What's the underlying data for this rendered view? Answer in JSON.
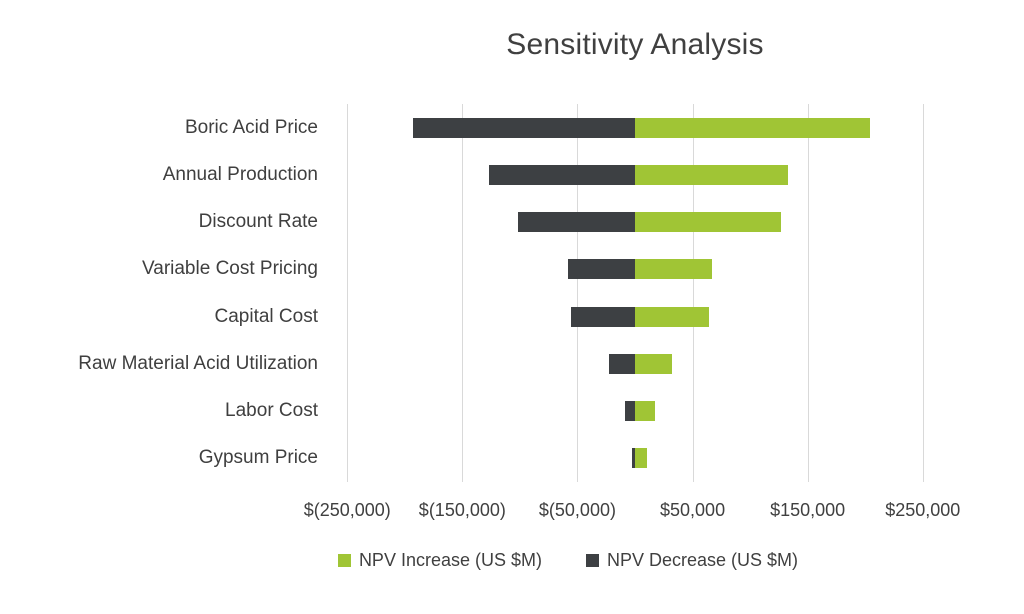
{
  "title": "Sensitivity Analysis",
  "legend": [
    {
      "label": "NPV Increase (US $M)",
      "color": "#a0c535",
      "name": "npv-increase"
    },
    {
      "label": "NPV Decrease (US $M)",
      "color": "#3d4043",
      "name": "npv-decrease"
    }
  ],
  "colors": {
    "increase": "#a0c535",
    "decrease": "#3d4043",
    "gridline": "#d9d9d9",
    "text": "#404040",
    "background": "#ffffff"
  },
  "chart_data": {
    "type": "bar",
    "orientation": "horizontal",
    "subtype": "tornado",
    "title": "Sensitivity Analysis",
    "categories": [
      "Boric Acid Price",
      "Annual Production",
      "Discount Rate",
      "Variable Cost Pricing",
      "Capital Cost",
      "Raw Material Acid Utilization",
      "Labor Cost",
      "Gypsum Price"
    ],
    "series": [
      {
        "name": "NPV Increase (US $M)",
        "color": "#a0c535",
        "values": [
          204000,
          133000,
          127000,
          67000,
          64000,
          32000,
          17000,
          10000
        ]
      },
      {
        "name": "NPV Decrease (US $M)",
        "color": "#3d4043",
        "values": [
          -193000,
          -127000,
          -102000,
          -58000,
          -56000,
          -23000,
          -9000,
          -3000
        ]
      }
    ],
    "x_ticks": [
      -250000,
      -150000,
      -50000,
      50000,
      150000,
      250000
    ],
    "x_tick_labels": [
      "$(250,000)",
      "$(150,000)",
      "$(50,000)",
      "$50,000",
      "$150,000",
      "$250,000"
    ],
    "xlim": [
      -265000,
      265000
    ],
    "xlabel": "",
    "ylabel": "",
    "grid": true,
    "legend_position": "bottom"
  }
}
